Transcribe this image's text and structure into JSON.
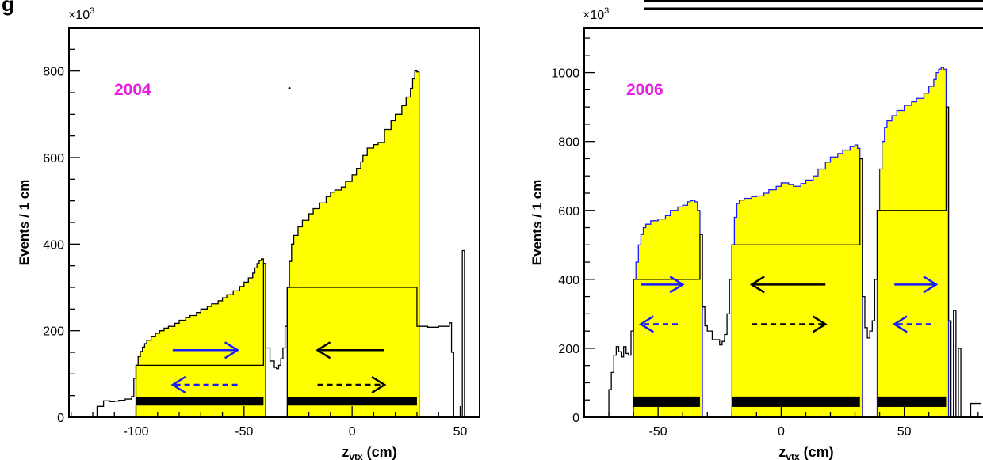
{
  "chart_data": [
    {
      "type": "histogram",
      "title": "",
      "year_label": "2004",
      "xlabel": "z",
      "xlabel_sub": "vtx",
      "xlabel_unit": " (cm)",
      "ylabel": "Events / 1 cm",
      "exponent_label": "×10",
      "exponent_sup": "3",
      "xlim": [
        -131,
        59
      ],
      "ylim": [
        0,
        900
      ],
      "xticks": [
        -100,
        -50,
        0,
        50
      ],
      "yticks": [
        0,
        200,
        400,
        600,
        800
      ],
      "highlight_color": "#ffff00",
      "outline_color": "#000000",
      "filled_regions": [
        {
          "x": [
            -100,
            -99,
            -98,
            -97,
            -96,
            -95,
            -93,
            -91,
            -89,
            -87,
            -85,
            -82,
            -80,
            -77,
            -75,
            -72,
            -70,
            -67,
            -65,
            -62,
            -60,
            -58,
            -55,
            -52,
            -50,
            -48,
            -46,
            -45,
            -44,
            -43,
            -42,
            -41
          ],
          "y": [
            120,
            140,
            152,
            162,
            170,
            178,
            186,
            194,
            200,
            206,
            210,
            217,
            224,
            230,
            235,
            242,
            250,
            256,
            262,
            269,
            276,
            283,
            292,
            302,
            312,
            322,
            333,
            345,
            355,
            362,
            366,
            355
          ]
        },
        {
          "x": [
            -30,
            -29,
            -28,
            -27,
            -25,
            -23,
            -20,
            -18,
            -15,
            -12,
            -10,
            -8,
            -5,
            -3,
            0,
            2,
            4,
            5,
            7,
            10,
            12,
            15,
            18,
            20,
            23,
            25,
            27,
            28,
            29,
            30
          ],
          "y": [
            300,
            360,
            400,
            420,
            440,
            455,
            470,
            482,
            495,
            510,
            520,
            525,
            532,
            545,
            560,
            575,
            590,
            605,
            622,
            630,
            635,
            665,
            685,
            700,
            720,
            740,
            760,
            782,
            800,
            798
          ]
        }
      ],
      "outline": {
        "x": [
          -122,
          -118,
          -115,
          -112,
          -110,
          -108,
          -105,
          -102,
          -101,
          -100,
          -41,
          -40,
          -38,
          -36,
          -35,
          -34,
          -33,
          -32,
          -31,
          -30,
          30,
          31,
          35,
          40,
          45,
          46,
          47,
          48,
          49,
          50,
          51,
          52,
          53,
          54
        ],
        "y": [
          0,
          25,
          38,
          36,
          37,
          39,
          42,
          48,
          90,
          120,
          355,
          160,
          130,
          115,
          112,
          120,
          135,
          160,
          210,
          300,
          210,
          210,
          208,
          210,
          218,
          150,
          0,
          0,
          0,
          0,
          385,
          0,
          0,
          0
        ]
      },
      "arrows": [
        {
          "color": "#1a1aff",
          "style": "solid",
          "direction": "right",
          "x": [
            -83,
            -53
          ],
          "y": 155
        },
        {
          "color": "#1a1aff",
          "style": "dashed",
          "direction": "left",
          "x": [
            -53,
            -83
          ],
          "y": 75
        },
        {
          "color": "#000000",
          "style": "solid",
          "direction": "left",
          "x": [
            15,
            -16
          ],
          "y": 155
        },
        {
          "color": "#000000",
          "style": "dashed",
          "direction": "right",
          "x": [
            -16,
            15
          ],
          "y": 75
        }
      ],
      "bars": [
        {
          "x": [
            -100,
            -41
          ],
          "y": [
            27,
            47
          ]
        },
        {
          "x": [
            -30,
            30
          ],
          "y": [
            27,
            47
          ]
        }
      ],
      "stray_dot": {
        "x": -29,
        "y": 760
      }
    },
    {
      "type": "histogram",
      "title": "",
      "year_label": "2006",
      "xlabel": "z",
      "xlabel_sub": "vtx",
      "xlabel_unit": " (cm)",
      "ylabel": "Events / 1 cm",
      "exponent_label": "×10",
      "exponent_sup": "3",
      "xlim": [
        -80,
        82
      ],
      "ylim": [
        0,
        1130
      ],
      "xticks": [
        -50,
        0,
        50
      ],
      "yticks": [
        0,
        200,
        400,
        600,
        800,
        1000
      ],
      "highlight_color": "#ffff00",
      "outline_color": "#1a1aff",
      "filled_regions": [
        {
          "x": [
            -60,
            -59,
            -58,
            -57,
            -56,
            -55,
            -53,
            -50,
            -47,
            -45,
            -42,
            -40,
            -38,
            -37,
            -36,
            -35,
            -34,
            -33
          ],
          "y": [
            400,
            450,
            500,
            530,
            550,
            560,
            570,
            575,
            585,
            600,
            610,
            615,
            625,
            628,
            630,
            625,
            600,
            530
          ]
        },
        {
          "x": [
            -20,
            -19,
            -18,
            -17,
            -15,
            -12,
            -10,
            -7,
            -5,
            -2,
            0,
            3,
            5,
            8,
            10,
            13,
            15,
            18,
            20,
            23,
            25,
            28,
            30,
            31,
            32
          ],
          "y": [
            500,
            580,
            620,
            630,
            635,
            640,
            642,
            650,
            660,
            670,
            680,
            675,
            670,
            678,
            688,
            700,
            720,
            740,
            755,
            765,
            775,
            785,
            790,
            780,
            750
          ]
        },
        {
          "x": [
            39,
            40,
            41,
            42,
            43,
            45,
            47,
            50,
            53,
            55,
            58,
            60,
            62,
            63,
            64,
            65,
            66,
            67
          ],
          "y": [
            600,
            720,
            800,
            840,
            860,
            875,
            890,
            905,
            915,
            925,
            940,
            960,
            980,
            1000,
            1010,
            1015,
            1010,
            900
          ]
        }
      ],
      "outline": {
        "x": [
          -72,
          -70,
          -69,
          -68,
          -67,
          -66,
          -65,
          -64,
          -63,
          -62,
          -61,
          -60,
          -33,
          -32,
          -31,
          -30,
          -28,
          -25,
          -24,
          -23,
          -22,
          -21,
          -20,
          32,
          33,
          34,
          35,
          36,
          37,
          38,
          39,
          67,
          68,
          69,
          70,
          71,
          72,
          73,
          74,
          75,
          76,
          77,
          80
        ],
        "y": [
          0,
          80,
          130,
          180,
          205,
          190,
          175,
          205,
          185,
          180,
          250,
          400,
          530,
          320,
          265,
          250,
          225,
          210,
          220,
          240,
          300,
          400,
          500,
          750,
          350,
          260,
          230,
          250,
          280,
          400,
          600,
          900,
          280,
          0,
          310,
          0,
          200,
          0,
          0,
          0,
          0,
          40,
          40
        ]
      },
      "arrows": [
        {
          "color": "#1a1aff",
          "style": "solid",
          "direction": "right",
          "x": [
            -57,
            -40
          ],
          "y": 385
        },
        {
          "color": "#1a1aff",
          "style": "dashed",
          "direction": "left",
          "x": [
            -42,
            -57
          ],
          "y": 270
        },
        {
          "color": "#000000",
          "style": "solid",
          "direction": "left",
          "x": [
            18,
            -12
          ],
          "y": 385
        },
        {
          "color": "#000000",
          "style": "dashed",
          "direction": "right",
          "x": [
            -12,
            18
          ],
          "y": 270
        },
        {
          "color": "#1a1aff",
          "style": "solid",
          "direction": "right",
          "x": [
            46,
            63
          ],
          "y": 385
        },
        {
          "color": "#1a1aff",
          "style": "dashed",
          "direction": "left",
          "x": [
            61,
            46
          ],
          "y": 270
        }
      ],
      "bars": [
        {
          "x": [
            -60,
            -33
          ],
          "y": [
            30,
            60
          ]
        },
        {
          "x": [
            -20,
            32
          ],
          "y": [
            30,
            60
          ]
        },
        {
          "x": [
            39,
            67
          ],
          "y": [
            30,
            60
          ]
        }
      ]
    }
  ],
  "header_fragment": "g"
}
